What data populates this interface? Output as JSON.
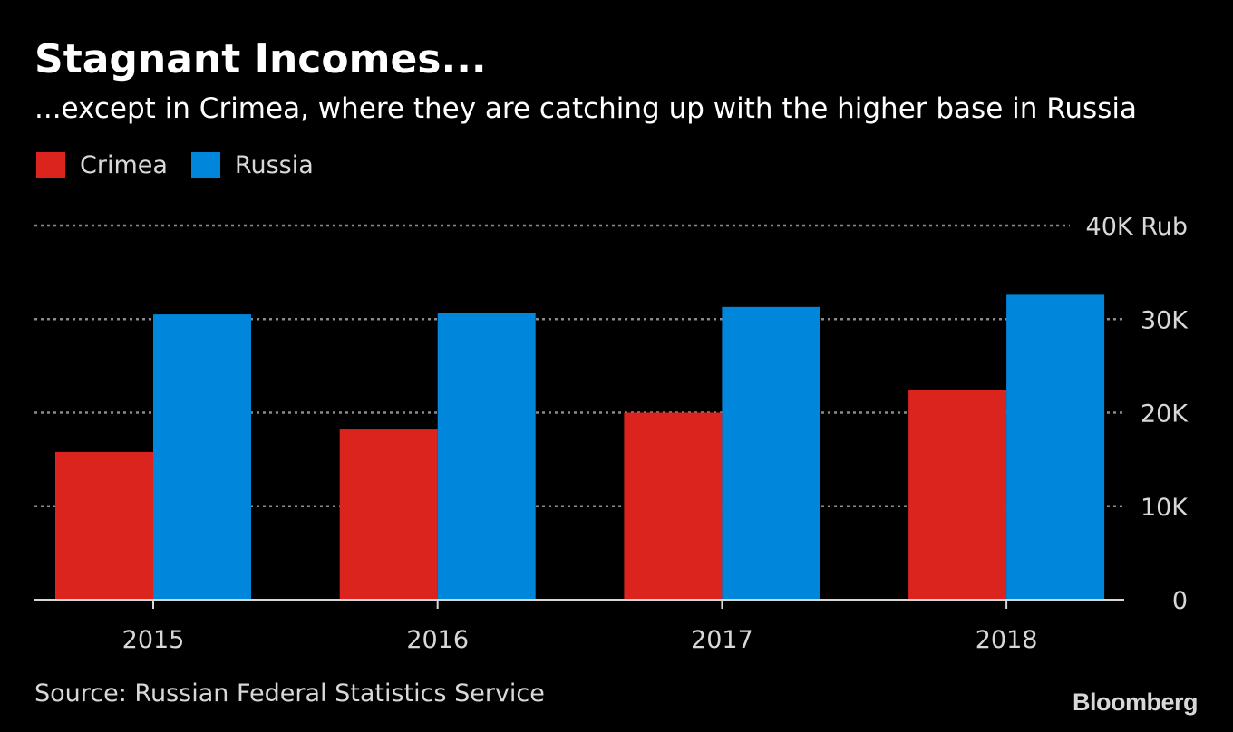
{
  "chart_data": {
    "type": "bar",
    "title": "Stagnant Incomes...",
    "subtitle": "...except in Crimea, where they are catching up with the higher base in Russia",
    "categories": [
      "2015",
      "2016",
      "2017",
      "2018"
    ],
    "series": [
      {
        "name": "Crimea",
        "color": "#dc241f",
        "values": [
          15800,
          18200,
          20000,
          22400
        ]
      },
      {
        "name": "Russia",
        "color": "#0087dc",
        "values": [
          30500,
          30700,
          31300,
          32600
        ]
      }
    ],
    "ylim": [
      0,
      40000
    ],
    "yticks": [
      {
        "value": 0,
        "label": "0"
      },
      {
        "value": 10000,
        "label": "10K"
      },
      {
        "value": 20000,
        "label": "20K"
      },
      {
        "value": 30000,
        "label": "30K"
      },
      {
        "value": 40000,
        "label": "40K Rub"
      }
    ],
    "grid": true,
    "legend_position": "top-left",
    "xlabel": "",
    "ylabel": ""
  },
  "footer": {
    "source": "Source: Russian Federal Statistics Service",
    "brand": "Bloomberg"
  }
}
